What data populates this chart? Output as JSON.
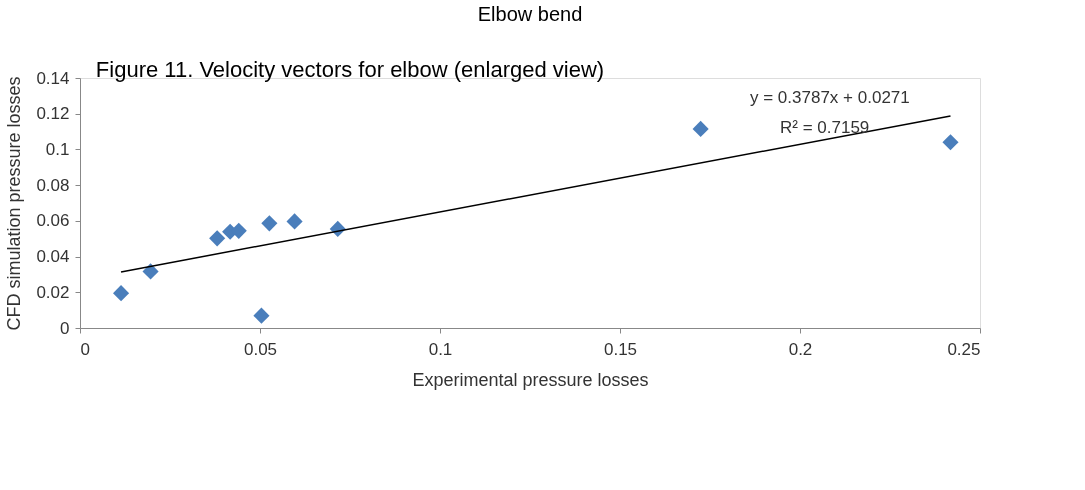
{
  "chart_data": {
    "type": "scatter",
    "title": "Elbow bend",
    "xlabel": "Experimental pressure losses",
    "ylabel": "CFD simulation pressure losses",
    "xlim": [
      0,
      0.25
    ],
    "xticks": [
      0,
      0.05,
      0.1,
      0.15,
      0.2,
      0.25
    ],
    "ylim": [
      0,
      0.14
    ],
    "yticks": [
      0,
      0.02,
      0.04,
      0.06,
      0.08,
      0.1,
      0.12,
      0.14
    ],
    "grid": false,
    "series": [
      {
        "color": "#4a7ebb",
        "marker": "diamond",
        "x": [
          0.0114,
          0.0196,
          0.0381,
          0.0417,
          0.0441,
          0.0526,
          0.0596,
          0.0716,
          0.0504,
          0.1724,
          0.2418
        ],
        "values": [
          0.0195,
          0.0317,
          0.0502,
          0.0539,
          0.0544,
          0.0586,
          0.0597,
          0.0555,
          0.0069,
          0.1115,
          0.104
        ]
      },
      {
        "type": "line",
        "color": "#000000",
        "x": [
          0.0114,
          0.2418
        ],
        "values": [
          0.0314,
          0.1187
        ]
      }
    ],
    "annotations": [
      "Figure 11. Velocity vectors for elbow (enlarged view)",
      "y = 0.3787x + 0.0271",
      "R² = 0.7159"
    ]
  }
}
